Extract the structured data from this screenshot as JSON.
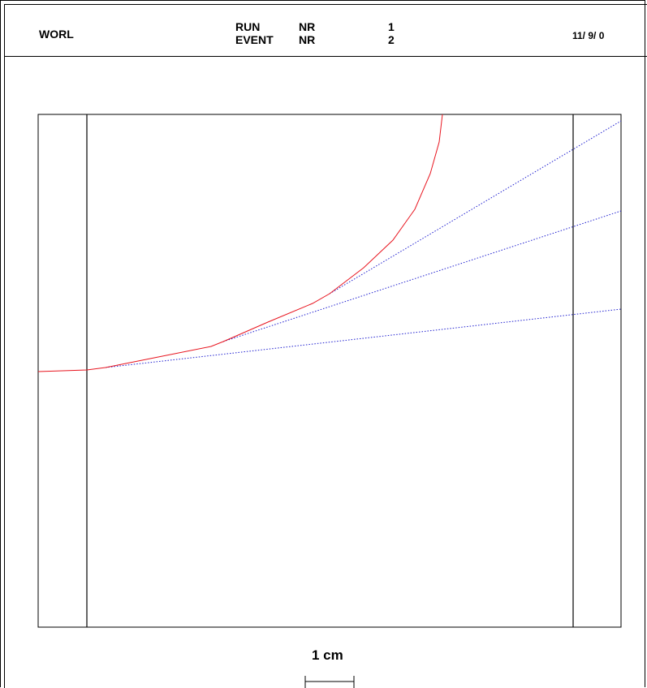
{
  "header": {
    "detector": "WORL",
    "run_label": "RUN",
    "event_label": "EVENT",
    "nr_label_run": "NR",
    "nr_label_event": "NR",
    "run_number": "1",
    "event_number": "2",
    "date": "11/ 9/ 0"
  },
  "scale_bar": {
    "label": "1 cm"
  },
  "colors": {
    "frame": "#000000",
    "charged_track": "#e8141e",
    "neutral_track": "#2020d0"
  },
  "tracks": [
    {
      "kind": "charged",
      "style": "solid"
    },
    {
      "kind": "neutral",
      "style": "dotted"
    },
    {
      "kind": "neutral",
      "style": "dotted"
    },
    {
      "kind": "neutral",
      "style": "dotted"
    }
  ]
}
